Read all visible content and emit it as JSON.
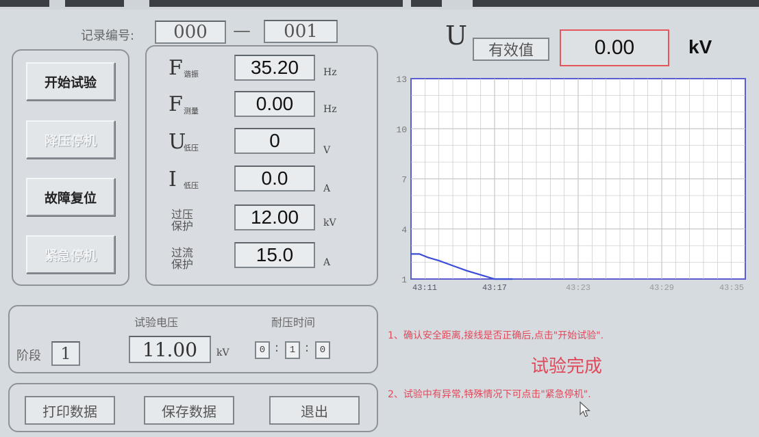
{
  "colors": {
    "curve": "#3b4cd6",
    "grid": "#c6c6c6",
    "plot_border": "#5b5bd0",
    "alert": "#e0495a",
    "effective_border": "#e5555b"
  },
  "record": {
    "label": "记录编号:",
    "from": "000",
    "dash": "—",
    "to": "001"
  },
  "buttons": {
    "start": "开始试验",
    "lower_stop": "降压停机",
    "fault_reset": "故障复位",
    "emergency_stop": "紧急停机"
  },
  "readings": {
    "f_resonance": {
      "main": "F",
      "sub": "谐振",
      "value": "35.20",
      "unit": "Hz"
    },
    "f_measure": {
      "main": "F",
      "sub": "测量",
      "value": "0.00",
      "unit": "Hz"
    },
    "u_low": {
      "main": "U",
      "sub": "低压",
      "value": "0",
      "unit": "V"
    },
    "i_low": {
      "main": "I",
      "sub": "低压",
      "value": "0.0",
      "unit": "A"
    },
    "overvolt": {
      "line1": "过压",
      "line2": "保护",
      "value": "12.00",
      "unit": "kV"
    },
    "overcurrent": {
      "line1": "过流",
      "line2": "保护",
      "value": "15.0",
      "unit": "A"
    }
  },
  "voltage_header": {
    "symbol": "U",
    "mode": "有效值",
    "value": "0.00",
    "unit": "kV"
  },
  "stage": {
    "label": "阶段",
    "value": "1",
    "test_voltage_label": "试验电压",
    "test_voltage": "11.00",
    "test_voltage_unit": "kV",
    "duration_label": "耐压时间",
    "h": "0",
    "colon": ":",
    "m": "1",
    "s": "0"
  },
  "footer_buttons": {
    "print": "打印数据",
    "save": "保存数据",
    "exit": "退出"
  },
  "messages": {
    "line1": "1、确认安全距离,接线是否正确后,点击\"开始试验\".",
    "status": "试验完成",
    "line2": "2、试验中有异常,特殊情况下可点击\"紧急停机\"."
  },
  "chart_data": {
    "type": "line",
    "y_ticks": [
      "13",
      "10",
      "7",
      "4",
      "1"
    ],
    "x_ticks": [
      "43:11",
      "43:17",
      "43:23",
      "43:29",
      "43:35"
    ],
    "ylim": [
      1,
      13
    ],
    "xlim": [
      0,
      24
    ],
    "grid": true,
    "series": [
      {
        "values": [
          [
            0,
            2.5
          ],
          [
            0.6,
            2.5
          ],
          [
            1.2,
            2.3
          ],
          [
            2,
            2.1
          ],
          [
            3,
            1.8
          ],
          [
            4,
            1.5
          ],
          [
            5,
            1.25
          ],
          [
            6,
            1.0
          ],
          [
            7.3,
            1.0
          ]
        ]
      }
    ]
  }
}
